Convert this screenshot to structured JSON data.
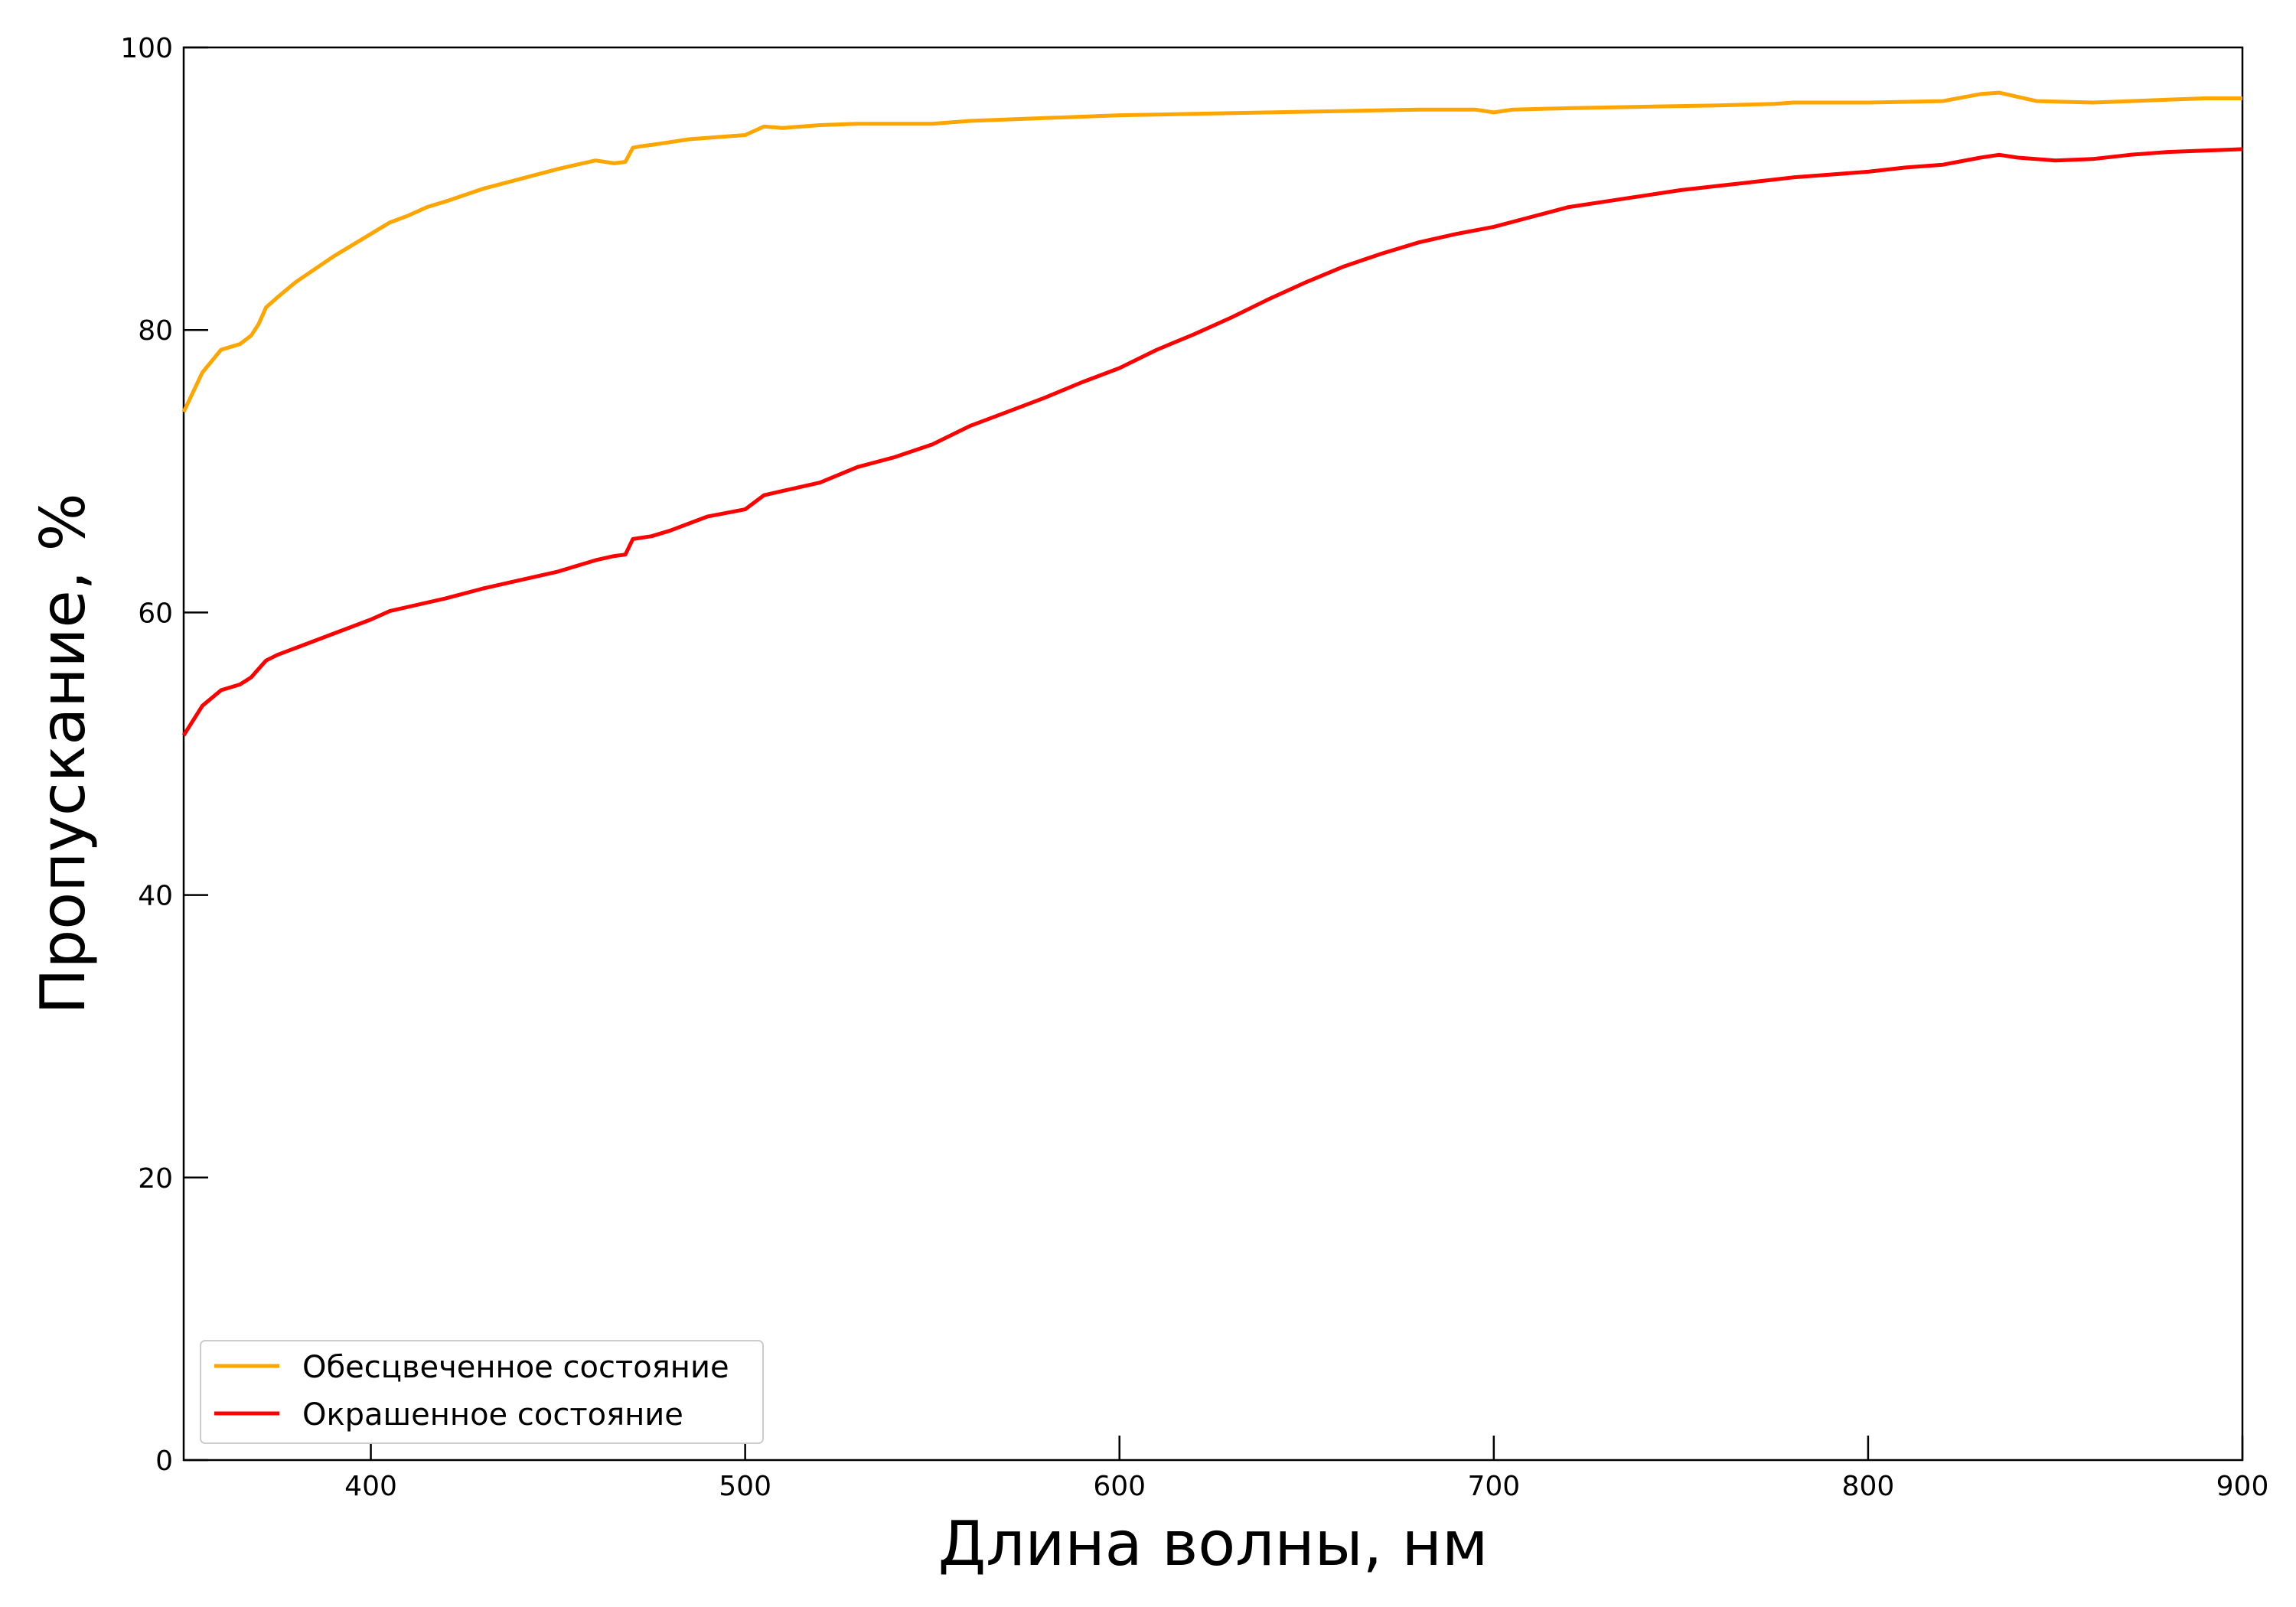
{
  "chart_data": {
    "type": "line",
    "title": "",
    "xlabel": "Длина волны, нм",
    "ylabel": "Пропускание, %",
    "xlim": [
      350,
      900
    ],
    "ylim": [
      0,
      100
    ],
    "x_ticks": [
      400,
      500,
      600,
      700,
      800,
      900
    ],
    "y_ticks": [
      0,
      20,
      40,
      60,
      80,
      100
    ],
    "grid": false,
    "legend_position": "bottom-left",
    "series": [
      {
        "name": "Обесцвеченное состояние",
        "color": "#FFA500",
        "x": [
          350,
          355,
          360,
          365,
          368,
          370,
          372,
          375,
          380,
          390,
          400,
          405,
          410,
          415,
          420,
          430,
          440,
          450,
          455,
          460,
          465,
          468,
          470,
          472,
          475,
          480,
          485,
          490,
          500,
          505,
          510,
          520,
          530,
          540,
          550,
          560,
          570,
          580,
          590,
          600,
          620,
          640,
          660,
          680,
          695,
          700,
          705,
          720,
          740,
          760,
          775,
          780,
          800,
          820,
          830,
          835,
          845,
          860,
          880,
          890,
          900
        ],
        "values": [
          74.2,
          77.0,
          78.6,
          79.0,
          79.6,
          80.4,
          81.6,
          82.3,
          83.4,
          85.2,
          86.8,
          87.6,
          88.1,
          88.7,
          89.1,
          90.0,
          90.7,
          91.4,
          91.7,
          92.0,
          91.8,
          91.9,
          92.9,
          93.0,
          93.1,
          93.3,
          93.5,
          93.6,
          93.8,
          94.4,
          94.3,
          94.5,
          94.6,
          94.6,
          94.6,
          94.8,
          94.9,
          95.0,
          95.1,
          95.2,
          95.3,
          95.4,
          95.5,
          95.6,
          95.6,
          95.4,
          95.6,
          95.7,
          95.8,
          95.9,
          96.0,
          96.1,
          96.1,
          96.2,
          96.7,
          96.8,
          96.2,
          96.1,
          96.3,
          96.4,
          96.4
        ]
      },
      {
        "name": "Окрашенное состояние",
        "color": "#FF0000",
        "x": [
          350,
          355,
          360,
          365,
          368,
          370,
          372,
          375,
          380,
          390,
          400,
          405,
          410,
          420,
          430,
          440,
          450,
          460,
          465,
          468,
          470,
          475,
          480,
          490,
          500,
          505,
          510,
          520,
          530,
          540,
          550,
          560,
          570,
          580,
          590,
          600,
          610,
          620,
          630,
          640,
          650,
          660,
          670,
          680,
          690,
          700,
          710,
          720,
          730,
          740,
          750,
          760,
          770,
          780,
          790,
          800,
          810,
          820,
          830,
          835,
          840,
          850,
          860,
          870,
          880,
          890,
          900
        ],
        "values": [
          51.3,
          53.4,
          54.5,
          54.9,
          55.4,
          56.0,
          56.6,
          57.0,
          57.5,
          58.5,
          59.5,
          60.1,
          60.4,
          61.0,
          61.7,
          62.3,
          62.9,
          63.7,
          64.0,
          64.1,
          65.2,
          65.4,
          65.8,
          66.8,
          67.3,
          68.3,
          68.6,
          69.2,
          70.3,
          71.0,
          71.9,
          73.2,
          74.2,
          75.2,
          76.3,
          77.3,
          78.6,
          79.7,
          80.9,
          82.2,
          83.4,
          84.5,
          85.4,
          86.2,
          86.8,
          87.3,
          88.0,
          88.7,
          89.1,
          89.5,
          89.9,
          90.2,
          90.5,
          90.8,
          91.0,
          91.2,
          91.5,
          91.7,
          92.2,
          92.4,
          92.2,
          92.0,
          92.1,
          92.4,
          92.6,
          92.7,
          92.8
        ]
      }
    ]
  }
}
